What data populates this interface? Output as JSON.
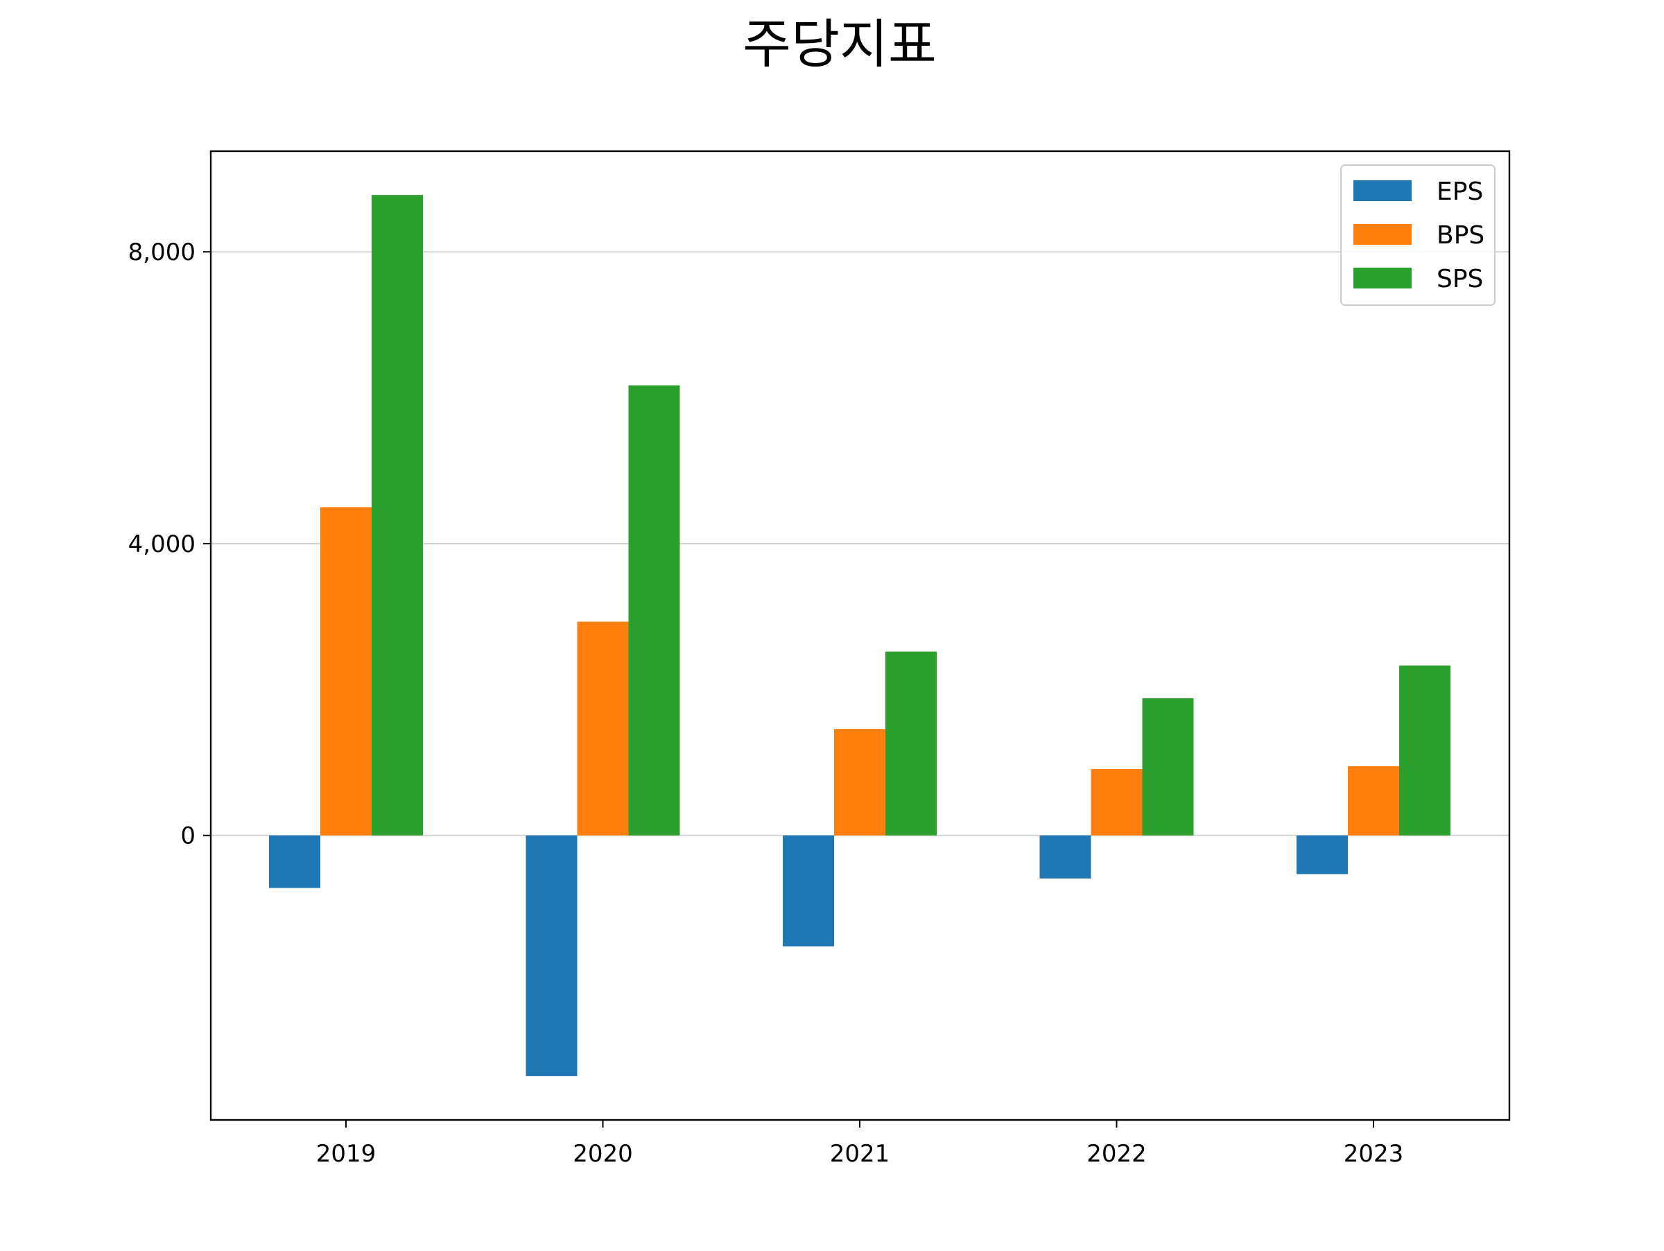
{
  "chart_data": {
    "type": "bar",
    "title": "주당지표",
    "xlabel": "",
    "ylabel": "",
    "categories": [
      "2019",
      "2020",
      "2021",
      "2022",
      "2023"
    ],
    "series": [
      {
        "name": "EPS",
        "color": "#1f77b4",
        "values": [
          -720,
          -3300,
          -1520,
          -590,
          -530
        ]
      },
      {
        "name": "BPS",
        "color": "#ff7f0e",
        "values": [
          4500,
          2930,
          1460,
          910,
          950
        ]
      },
      {
        "name": "SPS",
        "color": "#2ca02c",
        "values": [
          8780,
          6170,
          2520,
          1880,
          2330
        ]
      }
    ],
    "ylim": [
      -3900,
      9380
    ],
    "yticks": [
      0,
      4000,
      8000
    ],
    "ytick_labels": [
      "0",
      "4,000",
      "8,000"
    ],
    "grid": true,
    "legend_position": "top-right"
  }
}
